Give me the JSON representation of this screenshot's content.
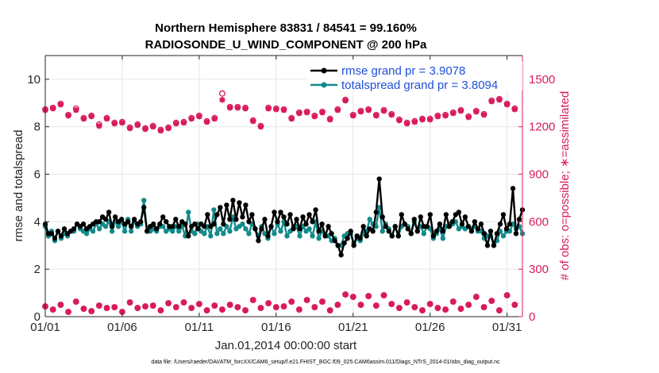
{
  "chart_data": {
    "type": "line",
    "title_line1": "Northern Hemisphere 83831 / 84541 = 99.160%",
    "title_line2": "RADIOSONDE_U_WIND_COMPONENT @ 200 hPa",
    "xlabel": "Jan.01,2014 00:00:00 start",
    "ylabel": "rmse and totalspread",
    "ylabel_right": "# of obs: o=possible; ∗=assimilated",
    "footer": "data file: /Users/raeder/DAI/ATM_forcXX/CAM6_setup/f.e21.FHIST_BGC.f09_025.CAM6assim.011/Diags_NTrS_2014-01/obs_diag_output.nc",
    "xlim": [
      1,
      32
    ],
    "ylim": [
      0,
      11
    ],
    "ylim_right": [
      0,
      1650
    ],
    "x_ticks": [
      1,
      6,
      11,
      16,
      21,
      26,
      31
    ],
    "x_tick_labels": [
      "01/01",
      "01/06",
      "01/11",
      "01/16",
      "01/21",
      "01/26",
      "01/31"
    ],
    "y_ticks": [
      0,
      2,
      4,
      6,
      8,
      10
    ],
    "y_tick_labels": [
      "0",
      "2",
      "4",
      "6",
      "8",
      "10"
    ],
    "y_ticks_right": [
      0,
      300,
      600,
      900,
      1200,
      1500
    ],
    "y_tick_labels_right": [
      "0",
      "300",
      "600",
      "900",
      "1200",
      "1500"
    ],
    "colors": {
      "rmse": "#000000",
      "spread": "#138a8a",
      "obs": "#d81b5a",
      "legend_text": "#1f4fd8"
    },
    "legend": [
      {
        "name": "rmse grand pr = 3.9078",
        "color": "#000000"
      },
      {
        "name": "totalspread grand pr = 3.8094",
        "color": "#138a8a"
      }
    ],
    "series": [
      {
        "name": "rmse",
        "axis": "left",
        "values": [
          3.9,
          3.5,
          3.5,
          3.3,
          3.6,
          3.4,
          3.7,
          3.5,
          3.6,
          3.7,
          3.9,
          3.8,
          3.9,
          3.7,
          3.8,
          3.9,
          4.0,
          4.0,
          4.2,
          4.1,
          4.4,
          3.8,
          4.2,
          4.0,
          4.1,
          3.9,
          4.0,
          3.8,
          4.1,
          3.9,
          4.0,
          4.6,
          3.6,
          3.8,
          3.9,
          3.7,
          3.9,
          4.2,
          4.0,
          3.8,
          3.8,
          4.1,
          3.8,
          4.0,
          3.9,
          3.4,
          3.8,
          3.9,
          3.7,
          3.9,
          3.8,
          4.3,
          3.8,
          3.9,
          4.3,
          4.6,
          3.9,
          4.7,
          4.1,
          4.9,
          4.1,
          4.8,
          4.2,
          4.7,
          4.0,
          4.3,
          3.7,
          3.2,
          3.7,
          4.1,
          3.4,
          3.8,
          4.4,
          4.0,
          4.4,
          4.2,
          3.9,
          4.3,
          3.7,
          4.1,
          3.7,
          4.2,
          3.9,
          4.3,
          4.0,
          4.5,
          3.6,
          3.9,
          3.4,
          3.8,
          3.5,
          3.2,
          3.0,
          2.6,
          3.1,
          3.3,
          3.6,
          3.0,
          3.4,
          3.3,
          3.8,
          3.4,
          3.7,
          3.6,
          4.4,
          5.8,
          4.2,
          3.8,
          3.6,
          3.4,
          3.8,
          3.4,
          4.3,
          3.9,
          3.7,
          3.5,
          4.1,
          3.6,
          4.2,
          3.8,
          3.8,
          4.3,
          3.4,
          3.6,
          3.9,
          3.6,
          4.3,
          3.8,
          4.0,
          4.3,
          4.4,
          3.9,
          4.2,
          3.8,
          3.6,
          4.0,
          3.7,
          3.9,
          3.5,
          3.0,
          3.6,
          3.0,
          3.5,
          3.9,
          4.3,
          3.7,
          3.9,
          5.4,
          3.5,
          4.1,
          4.5
        ]
      },
      {
        "name": "totalspread",
        "axis": "left",
        "values": [
          3.8,
          3.4,
          3.6,
          3.2,
          3.6,
          3.3,
          3.5,
          3.4,
          3.6,
          3.6,
          3.9,
          3.7,
          3.6,
          3.5,
          3.7,
          3.6,
          3.9,
          3.7,
          3.9,
          3.8,
          4.0,
          3.6,
          4.0,
          3.8,
          4.0,
          3.6,
          4.1,
          3.6,
          4.0,
          3.8,
          3.9,
          4.9,
          3.6,
          3.6,
          3.7,
          3.6,
          3.8,
          3.8,
          3.6,
          3.7,
          3.6,
          3.8,
          3.6,
          3.8,
          3.4,
          4.4,
          3.6,
          3.5,
          3.9,
          3.6,
          3.5,
          3.8,
          3.4,
          4.5,
          3.5,
          3.7,
          3.5,
          3.8,
          3.6,
          4.2,
          3.7,
          3.8,
          3.9,
          3.7,
          3.5,
          3.9,
          3.7,
          3.4,
          3.8,
          3.5,
          3.3,
          3.8,
          3.5,
          3.9,
          3.6,
          4.0,
          3.4,
          3.6,
          3.8,
          3.8,
          3.4,
          3.8,
          3.6,
          3.7,
          3.4,
          4.0,
          3.3,
          3.6,
          3.4,
          3.4,
          3.2,
          3.3,
          3.0,
          3.0,
          3.4,
          3.5,
          3.5,
          3.1,
          3.3,
          3.2,
          3.5,
          3.6,
          4.1,
          3.9,
          3.8,
          4.6,
          3.6,
          3.9,
          3.7,
          3.4,
          3.8,
          3.4,
          3.8,
          3.9,
          3.8,
          3.5,
          4.0,
          3.6,
          3.8,
          3.5,
          3.8,
          3.7,
          3.3,
          3.5,
          3.7,
          3.3,
          3.8,
          3.9,
          3.9,
          4.0,
          3.7,
          3.8,
          3.7,
          3.8,
          3.7,
          3.8,
          3.6,
          3.6,
          3.3,
          3.4,
          3.4,
          3.0,
          3.2,
          3.6,
          3.4,
          3.6,
          3.6,
          3.9,
          3.7,
          3.8,
          3.5
        ]
      },
      {
        "name": "obs possible",
        "axis": "right",
        "marker": "o",
        "x": [
          1,
          1.5,
          2,
          2.5,
          3,
          3.5,
          4,
          4.5,
          5,
          5.5,
          6,
          6.5,
          7,
          7.5,
          8,
          8.5,
          9,
          9.5,
          10,
          10.5,
          11,
          11.5,
          12,
          12.5,
          13,
          13.5,
          14,
          14.5,
          15,
          15.5,
          16,
          16.5,
          17,
          17.5,
          18,
          18.5,
          19,
          19.5,
          20,
          20.5,
          21,
          21.5,
          22,
          22.5,
          23,
          23.5,
          24,
          24.5,
          25,
          25.5,
          26,
          26.5,
          27,
          27.5,
          28,
          28.5,
          29,
          29.5,
          30,
          30.5,
          31,
          31.5
        ],
        "values": [
          1310,
          1320,
          1345,
          1275,
          1315,
          1255,
          1270,
          1215,
          1255,
          1225,
          1230,
          1195,
          1215,
          1190,
          1205,
          1180,
          1195,
          1225,
          1230,
          1255,
          1270,
          1235,
          1255,
          1410,
          1325,
          1325,
          1320,
          1240,
          1205,
          1320,
          1315,
          1310,
          1255,
          1290,
          1295,
          1270,
          1295,
          1250,
          1310,
          1370,
          1275,
          1300,
          1310,
          1275,
          1305,
          1280,
          1245,
          1225,
          1235,
          1250,
          1250,
          1270,
          1275,
          1290,
          1305,
          1265,
          1300,
          1280,
          1365,
          1375,
          1345,
          1315
        ]
      },
      {
        "name": "obs assimilated",
        "axis": "right",
        "marker": "*",
        "x": [
          1,
          1.5,
          2,
          2.5,
          3,
          3.5,
          4,
          4.5,
          5,
          5.5,
          6,
          6.5,
          7,
          7.5,
          8,
          8.5,
          9,
          9.5,
          10,
          10.5,
          11,
          11.5,
          12,
          12.5,
          13,
          13.5,
          14,
          14.5,
          15,
          15.5,
          16,
          16.5,
          17,
          17.5,
          18,
          18.5,
          19,
          19.5,
          20,
          20.5,
          21,
          21.5,
          22,
          22.5,
          23,
          23.5,
          24,
          24.5,
          25,
          25.5,
          26,
          26.5,
          27,
          27.5,
          28,
          28.5,
          29,
          29.5,
          30,
          30.5,
          31,
          31.5
        ],
        "values": [
          1305,
          1315,
          1340,
          1270,
          1305,
          1250,
          1265,
          1205,
          1250,
          1220,
          1225,
          1190,
          1210,
          1185,
          1200,
          1175,
          1190,
          1220,
          1225,
          1250,
          1265,
          1230,
          1250,
          1370,
          1320,
          1320,
          1315,
          1235,
          1200,
          1315,
          1310,
          1305,
          1250,
          1285,
          1290,
          1265,
          1290,
          1245,
          1305,
          1365,
          1270,
          1295,
          1305,
          1270,
          1300,
          1275,
          1240,
          1220,
          1230,
          1245,
          1245,
          1265,
          1270,
          1285,
          1300,
          1260,
          1295,
          1275,
          1360,
          1370,
          1340,
          1310
        ]
      }
    ],
    "obs_low": {
      "name": "obs low group",
      "axis": "right",
      "x": [
        1,
        1.5,
        2,
        2.5,
        3,
        3.5,
        4,
        4.5,
        5,
        5.5,
        6,
        6.5,
        7,
        7.5,
        8,
        8.5,
        9,
        9.5,
        10,
        10.5,
        11,
        11.5,
        12,
        12.5,
        13,
        13.5,
        14,
        14.5,
        15,
        15.5,
        16,
        16.5,
        17,
        17.5,
        18,
        18.5,
        19,
        19.5,
        20,
        20.5,
        21,
        21.5,
        22,
        22.5,
        23,
        23.5,
        24,
        24.5,
        25,
        25.5,
        26,
        26.5,
        27,
        27.5,
        28,
        28.5,
        29,
        29.5,
        30,
        30.5,
        31,
        31.5
      ],
      "values": [
        65,
        45,
        75,
        30,
        95,
        50,
        35,
        70,
        55,
        60,
        30,
        90,
        55,
        65,
        70,
        40,
        85,
        60,
        90,
        55,
        80,
        40,
        70,
        45,
        75,
        60,
        40,
        105,
        55,
        85,
        60,
        65,
        95,
        45,
        105,
        60,
        95,
        40,
        75,
        140,
        125,
        75,
        130,
        70,
        135,
        80,
        55,
        90,
        60,
        40,
        80,
        55,
        45,
        95,
        50,
        75,
        125,
        60,
        100,
        40,
        135,
        75
      ]
    }
  }
}
